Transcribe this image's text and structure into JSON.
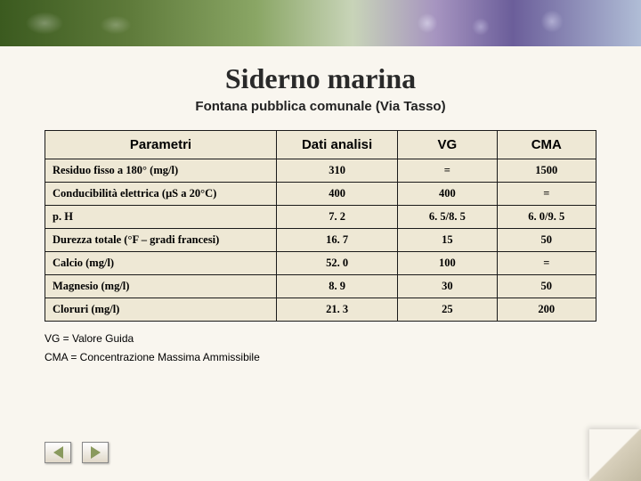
{
  "title": "Siderno marina",
  "subtitle": "Fontana pubblica comunale (Via Tasso)",
  "table": {
    "columns": [
      "Parametri",
      "Dati analisi",
      "VG",
      "CMA"
    ],
    "rows": [
      {
        "param": "Residuo fisso a 180° (mg/l)",
        "dati": "310",
        "vg": "=",
        "cma": "1500"
      },
      {
        "param": "Conducibilità elettrica (μS a 20°C)",
        "dati": "400",
        "vg": "400",
        "cma": "="
      },
      {
        "param": "p. H",
        "dati": "7. 2",
        "vg": "6. 5/8. 5",
        "cma": "6. 0/9. 5"
      },
      {
        "param": "Durezza totale (°F – gradi francesi)",
        "dati": "16. 7",
        "vg": "15",
        "cma": "50"
      },
      {
        "param": "Calcio (mg/l)",
        "dati": "52. 0",
        "vg": "100",
        "cma": "="
      },
      {
        "param": "Magnesio (mg/l)",
        "dati": "8. 9",
        "vg": "30",
        "cma": "50"
      },
      {
        "param": "Cloruri (mg/l)",
        "dati": "21. 3",
        "vg": "25",
        "cma": "200"
      }
    ]
  },
  "legend": {
    "vg": "VG = Valore Guida",
    "cma": "CMA = Concentrazione Massima Ammissibile"
  },
  "colors": {
    "page_bg": "#f9f6ef",
    "cell_bg": "#eee8d5",
    "border": "#1a1a1a",
    "nav_tri": "#8a9a5e"
  }
}
